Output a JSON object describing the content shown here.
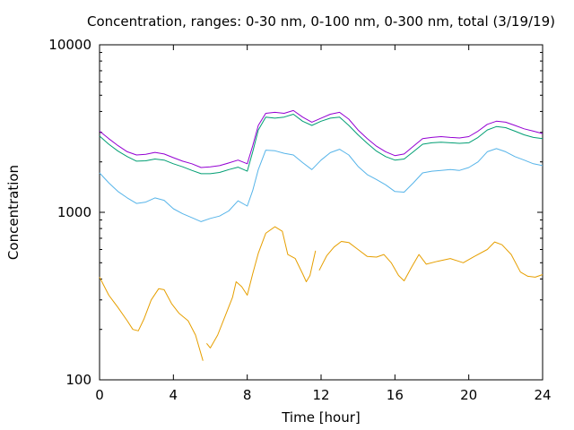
{
  "chart_data": {
    "type": "line",
    "title": "Concentration, ranges: 0-30 nm, 0-100 nm, 0-300 nm, total (3/19/19)",
    "xlabel": "Time [hour]",
    "ylabel": "Concentration",
    "xlim": [
      0,
      24
    ],
    "ylim": [
      100,
      10000
    ],
    "yscale": "log",
    "grid": false,
    "x_ticks": [
      "0",
      "4",
      "8",
      "12",
      "16",
      "20",
      "24"
    ],
    "y_ticks": [
      "100",
      "1000",
      "10000"
    ],
    "series": [
      {
        "color": "#e69f00",
        "segments": [
          [
            [
              0,
              410
            ],
            [
              0.5,
              320
            ],
            [
              1,
              270
            ],
            [
              1.5,
              225
            ],
            [
              1.8,
              200
            ],
            [
              2.1,
              196
            ],
            [
              2.4,
              230
            ],
            [
              2.8,
              300
            ],
            [
              3.2,
              350
            ],
            [
              3.5,
              345
            ],
            [
              3.9,
              285
            ],
            [
              4.3,
              250
            ],
            [
              4.8,
              225
            ],
            [
              5.2,
              185
            ],
            [
              5.6,
              130
            ]
          ],
          [
            [
              5.8,
              165
            ],
            [
              6.0,
              155
            ],
            [
              6.4,
              185
            ],
            [
              6.8,
              240
            ],
            [
              7.2,
              310
            ],
            [
              7.4,
              385
            ],
            [
              7.7,
              360
            ],
            [
              8.0,
              320
            ],
            [
              8.3,
              430
            ],
            [
              8.6,
              570
            ],
            [
              9.0,
              750
            ],
            [
              9.5,
              820
            ],
            [
              9.9,
              770
            ],
            [
              10.2,
              560
            ],
            [
              10.6,
              530
            ],
            [
              11.0,
              430
            ],
            [
              11.2,
              385
            ],
            [
              11.4,
              420
            ],
            [
              11.7,
              590
            ]
          ],
          [
            [
              11.9,
              450
            ],
            [
              12.3,
              550
            ],
            [
              12.7,
              620
            ],
            [
              13.1,
              670
            ],
            [
              13.5,
              660
            ],
            [
              14.0,
              600
            ],
            [
              14.5,
              545
            ],
            [
              15.0,
              540
            ],
            [
              15.4,
              560
            ],
            [
              15.8,
              500
            ],
            [
              16.2,
              420
            ],
            [
              16.5,
              390
            ],
            [
              16.9,
              470
            ],
            [
              17.3,
              560
            ],
            [
              17.7,
              490
            ],
            [
              18.3,
              510
            ],
            [
              19.0,
              530
            ],
            [
              19.7,
              500
            ],
            [
              20.3,
              545
            ],
            [
              21.0,
              600
            ],
            [
              21.4,
              665
            ],
            [
              21.8,
              640
            ],
            [
              22.3,
              560
            ],
            [
              22.8,
              440
            ],
            [
              23.2,
              415
            ],
            [
              23.6,
              410
            ],
            [
              24.0,
              425
            ]
          ]
        ]
      },
      {
        "color": "#56b4e9",
        "segments": [
          [
            [
              0,
              1720
            ],
            [
              0.5,
              1500
            ],
            [
              1,
              1330
            ],
            [
              1.5,
              1220
            ],
            [
              2,
              1130
            ],
            [
              2.5,
              1150
            ],
            [
              3,
              1220
            ],
            [
              3.5,
              1180
            ],
            [
              4,
              1050
            ],
            [
              4.5,
              980
            ],
            [
              5,
              930
            ],
            [
              5.5,
              880
            ],
            [
              6,
              920
            ],
            [
              6.5,
              950
            ],
            [
              7,
              1020
            ],
            [
              7.5,
              1170
            ],
            [
              8,
              1090
            ],
            [
              8.3,
              1350
            ],
            [
              8.6,
              1800
            ],
            [
              9,
              2350
            ],
            [
              9.5,
              2330
            ],
            [
              10,
              2250
            ],
            [
              10.5,
              2200
            ],
            [
              11,
              1980
            ],
            [
              11.5,
              1800
            ],
            [
              12,
              2050
            ],
            [
              12.5,
              2270
            ],
            [
              13,
              2380
            ],
            [
              13.5,
              2200
            ],
            [
              14,
              1880
            ],
            [
              14.5,
              1680
            ],
            [
              15,
              1570
            ],
            [
              15.5,
              1460
            ],
            [
              16,
              1330
            ],
            [
              16.5,
              1320
            ],
            [
              17,
              1500
            ],
            [
              17.5,
              1720
            ],
            [
              18,
              1760
            ],
            [
              18.5,
              1780
            ],
            [
              19,
              1800
            ],
            [
              19.5,
              1780
            ],
            [
              20,
              1850
            ],
            [
              20.5,
              2000
            ],
            [
              21,
              2300
            ],
            [
              21.5,
              2400
            ],
            [
              22,
              2300
            ],
            [
              22.5,
              2150
            ],
            [
              23,
              2050
            ],
            [
              23.5,
              1950
            ],
            [
              24,
              1900
            ]
          ]
        ]
      },
      {
        "color": "#009e73",
        "segments": [
          [
            [
              0,
              2850
            ],
            [
              0.5,
              2550
            ],
            [
              1,
              2320
            ],
            [
              1.5,
              2150
            ],
            [
              2,
              2020
            ],
            [
              2.5,
              2030
            ],
            [
              3,
              2080
            ],
            [
              3.5,
              2050
            ],
            [
              4,
              1950
            ],
            [
              4.5,
              1870
            ],
            [
              5,
              1780
            ],
            [
              5.5,
              1700
            ],
            [
              6,
              1700
            ],
            [
              6.5,
              1730
            ],
            [
              7,
              1800
            ],
            [
              7.5,
              1860
            ],
            [
              8,
              1760
            ],
            [
              8.3,
              2300
            ],
            [
              8.6,
              3100
            ],
            [
              9,
              3700
            ],
            [
              9.5,
              3650
            ],
            [
              10,
              3700
            ],
            [
              10.5,
              3850
            ],
            [
              11,
              3500
            ],
            [
              11.5,
              3300
            ],
            [
              12,
              3500
            ],
            [
              12.5,
              3650
            ],
            [
              13,
              3700
            ],
            [
              13.5,
              3300
            ],
            [
              14,
              2900
            ],
            [
              14.5,
              2580
            ],
            [
              15,
              2320
            ],
            [
              15.5,
              2150
            ],
            [
              16,
              2050
            ],
            [
              16.5,
              2080
            ],
            [
              17,
              2300
            ],
            [
              17.5,
              2550
            ],
            [
              18,
              2600
            ],
            [
              18.5,
              2620
            ],
            [
              19,
              2600
            ],
            [
              19.5,
              2580
            ],
            [
              20,
              2600
            ],
            [
              20.5,
              2800
            ],
            [
              21,
              3100
            ],
            [
              21.5,
              3250
            ],
            [
              22,
              3200
            ],
            [
              22.5,
              3050
            ],
            [
              23,
              2900
            ],
            [
              23.5,
              2800
            ],
            [
              24,
              2750
            ]
          ]
        ]
      },
      {
        "color": "#9400d3",
        "segments": [
          [
            [
              0,
              3050
            ],
            [
              0.5,
              2750
            ],
            [
              1,
              2500
            ],
            [
              1.5,
              2300
            ],
            [
              2,
              2200
            ],
            [
              2.5,
              2220
            ],
            [
              3,
              2280
            ],
            [
              3.5,
              2230
            ],
            [
              4,
              2120
            ],
            [
              4.5,
              2020
            ],
            [
              5,
              1950
            ],
            [
              5.5,
              1850
            ],
            [
              6,
              1870
            ],
            [
              6.5,
              1900
            ],
            [
              7,
              1970
            ],
            [
              7.5,
              2050
            ],
            [
              8,
              1950
            ],
            [
              8.3,
              2500
            ],
            [
              8.6,
              3300
            ],
            [
              9,
              3900
            ],
            [
              9.5,
              3950
            ],
            [
              10,
              3900
            ],
            [
              10.5,
              4050
            ],
            [
              11,
              3700
            ],
            [
              11.5,
              3450
            ],
            [
              12,
              3650
            ],
            [
              12.5,
              3850
            ],
            [
              13,
              3950
            ],
            [
              13.5,
              3600
            ],
            [
              14,
              3100
            ],
            [
              14.5,
              2750
            ],
            [
              15,
              2480
            ],
            [
              15.5,
              2300
            ],
            [
              16,
              2180
            ],
            [
              16.5,
              2230
            ],
            [
              17,
              2480
            ],
            [
              17.5,
              2750
            ],
            [
              18,
              2800
            ],
            [
              18.5,
              2830
            ],
            [
              19,
              2800
            ],
            [
              19.5,
              2780
            ],
            [
              20,
              2830
            ],
            [
              20.5,
              3050
            ],
            [
              21,
              3350
            ],
            [
              21.5,
              3500
            ],
            [
              22,
              3450
            ],
            [
              22.5,
              3300
            ],
            [
              23,
              3150
            ],
            [
              23.5,
              3050
            ],
            [
              24,
              2950
            ]
          ]
        ]
      }
    ]
  }
}
